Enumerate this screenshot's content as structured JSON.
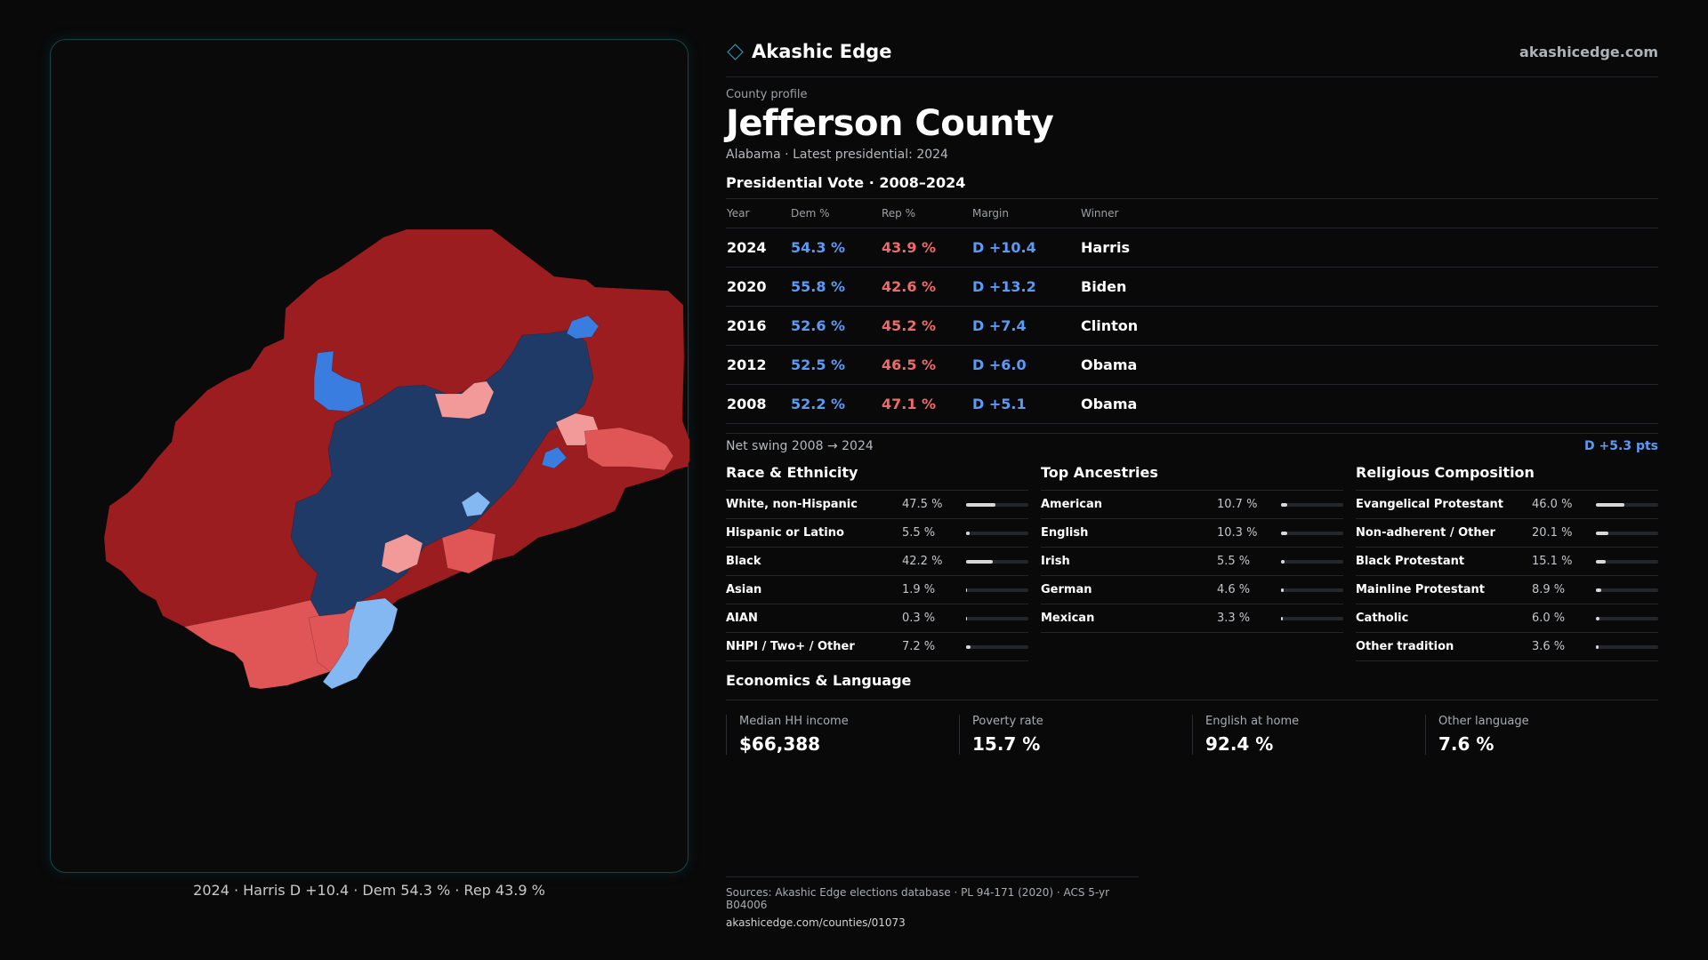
{
  "brand": {
    "name": "Akashic Edge",
    "site": "akashicedge.com",
    "icon": "diamond-icon",
    "accent": "#2aa6b8"
  },
  "profile": {
    "eyebrow": "County profile",
    "title": "Jefferson County",
    "subtitle": "Alabama · Latest presidential: 2024"
  },
  "map": {
    "caption": "2024 · Harris D +10.4 · Dem 54.3 % · Rep 43.9 %",
    "colors": {
      "strong_rep": "#9b1d20",
      "lean_rep": "#e05555",
      "tilt_rep": "#f29a9a",
      "strong_dem": "#1f3a66",
      "lean_dem": "#3a7de0",
      "tilt_dem": "#84b8f2"
    }
  },
  "votes": {
    "heading": "Presidential Vote · 2008–2024",
    "columns": [
      "Year",
      "Dem %",
      "Rep %",
      "Margin",
      "Winner"
    ],
    "rows": [
      {
        "year": "2024",
        "dem": "54.3 %",
        "rep": "43.9 %",
        "margin": "D +10.4",
        "winner": "Harris"
      },
      {
        "year": "2020",
        "dem": "55.8 %",
        "rep": "42.6 %",
        "margin": "D +13.2",
        "winner": "Biden"
      },
      {
        "year": "2016",
        "dem": "52.6 %",
        "rep": "45.2 %",
        "margin": "D +7.4",
        "winner": "Clinton"
      },
      {
        "year": "2012",
        "dem": "52.5 %",
        "rep": "46.5 %",
        "margin": "D +6.0",
        "winner": "Obama"
      },
      {
        "year": "2008",
        "dem": "52.2 %",
        "rep": "47.1 %",
        "margin": "D +5.1",
        "winner": "Obama"
      }
    ],
    "swing_label": "Net swing 2008 → 2024",
    "swing_value": "D +5.3 pts"
  },
  "race": {
    "heading": "Race & Ethnicity",
    "items": [
      {
        "label": "White, non-Hispanic",
        "value": "47.5 %",
        "pct": 47.5
      },
      {
        "label": "Hispanic or Latino",
        "value": "5.5 %",
        "pct": 5.5
      },
      {
        "label": "Black",
        "value": "42.2 %",
        "pct": 42.2
      },
      {
        "label": "Asian",
        "value": "1.9 %",
        "pct": 1.9
      },
      {
        "label": "AIAN",
        "value": "0.3 %",
        "pct": 0.3
      },
      {
        "label": "NHPI / Two+ / Other",
        "value": "7.2 %",
        "pct": 7.2
      }
    ]
  },
  "ancestry": {
    "heading": "Top Ancestries",
    "items": [
      {
        "label": "American",
        "value": "10.7 %",
        "pct": 10.7
      },
      {
        "label": "English",
        "value": "10.3 %",
        "pct": 10.3
      },
      {
        "label": "Irish",
        "value": "5.5 %",
        "pct": 5.5
      },
      {
        "label": "German",
        "value": "4.6 %",
        "pct": 4.6
      },
      {
        "label": "Mexican",
        "value": "3.3 %",
        "pct": 3.3
      }
    ]
  },
  "religion": {
    "heading": "Religious Composition",
    "items": [
      {
        "label": "Evangelical Protestant",
        "value": "46.0 %",
        "pct": 46.0
      },
      {
        "label": "Non-adherent / Other",
        "value": "20.1 %",
        "pct": 20.1
      },
      {
        "label": "Black Protestant",
        "value": "15.1 %",
        "pct": 15.1
      },
      {
        "label": "Mainline Protestant",
        "value": "8.9 %",
        "pct": 8.9
      },
      {
        "label": "Catholic",
        "value": "6.0 %",
        "pct": 6.0
      },
      {
        "label": "Other tradition",
        "value": "3.6 %",
        "pct": 3.6
      }
    ]
  },
  "economics": {
    "heading": "Economics & Language",
    "stats": [
      {
        "label": "Median HH income",
        "value": "$66,388"
      },
      {
        "label": "Poverty rate",
        "value": "15.7 %"
      },
      {
        "label": "English at home",
        "value": "92.4 %"
      },
      {
        "label": "Other language",
        "value": "7.6 %"
      }
    ]
  },
  "sources": {
    "text": "Sources: Akashic Edge elections database · PL 94-171 (2020) · ACS 5-yr B04006",
    "url": "akashicedge.com/counties/01073"
  }
}
